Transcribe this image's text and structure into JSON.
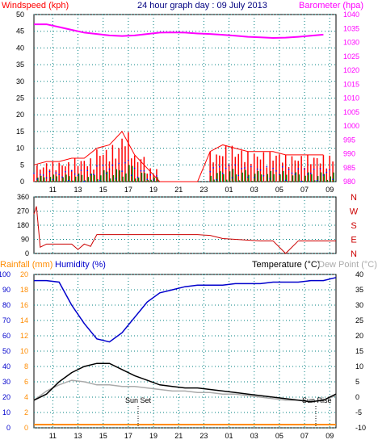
{
  "chart_data": [
    {
      "type": "line",
      "title": "24 hour graph day : 09 July 2013",
      "ylabel_left": "Windspeed (kph)",
      "ylabel_right": "Barometer (hpa)",
      "x_ticks": [
        "11",
        "13",
        "15",
        "17",
        "19",
        "21",
        "23",
        "01",
        "03",
        "05",
        "07",
        "09"
      ],
      "y_left_ticks": [
        "0",
        "5",
        "10",
        "15",
        "20",
        "25",
        "30",
        "35",
        "40",
        "45",
        "50"
      ],
      "y_right_ticks": [
        "980",
        "985",
        "990",
        "995",
        "1000",
        "1005",
        "1010",
        "1015",
        "1020",
        "1025",
        "1030",
        "1035",
        "1040"
      ],
      "ylim_left": [
        0,
        50
      ],
      "ylim_right": [
        980,
        1040
      ],
      "grid": true,
      "series": [
        {
          "name": "Windspeed (kph)",
          "color": "#ff0000",
          "hours": [
            0,
            1,
            2,
            3,
            4,
            5,
            6,
            7,
            8,
            9,
            10,
            11,
            12,
            13,
            14,
            15,
            16,
            17,
            18,
            19,
            20,
            21,
            22,
            23
          ],
          "values": [
            5,
            6,
            6,
            7,
            7,
            10,
            11,
            15,
            8,
            4,
            0,
            0,
            0,
            0,
            9,
            11,
            10,
            9,
            9,
            9,
            8,
            8,
            8,
            8
          ]
        },
        {
          "name": "Barometer (hpa)",
          "color": "#ff00ff",
          "hours": [
            0,
            1,
            2,
            3,
            4,
            5,
            6,
            7,
            8,
            9,
            10,
            11,
            12,
            13,
            14,
            15,
            16,
            17,
            18,
            19,
            20,
            21,
            22,
            23
          ],
          "values": [
            1036.5,
            1036.5,
            1035.5,
            1034.5,
            1033.5,
            1033,
            1032.5,
            1032.3,
            1032.5,
            1033,
            1033.5,
            1033.6,
            1033.5,
            1033.2,
            1033,
            1032.7,
            1032.4,
            1032,
            1031.8,
            1031.6,
            1031.7,
            1032,
            1032.4,
            1032.8
          ]
        }
      ]
    },
    {
      "type": "line",
      "ylabel_right_letters": [
        "N",
        "W",
        "S",
        "E",
        "N"
      ],
      "y_left_ticks": [
        "360",
        "270",
        "180",
        "90",
        "0"
      ],
      "ylim": [
        0,
        360
      ],
      "grid": true,
      "series": [
        {
          "name": "Wind direction",
          "color": "#cc0000",
          "hours": [
            0,
            0.2,
            0.5,
            1,
            2,
            2.5,
            3,
            3.5,
            4,
            4.5,
            5,
            6,
            7,
            8,
            9,
            10,
            11,
            12,
            13,
            14,
            15,
            16,
            17,
            18,
            19,
            20,
            21,
            22,
            23,
            24
          ],
          "values": [
            250,
            300,
            40,
            60,
            60,
            60,
            60,
            25,
            60,
            45,
            120,
            120,
            120,
            120,
            120,
            120,
            120,
            120,
            120,
            115,
            95,
            90,
            85,
            80,
            80,
            0,
            80,
            80,
            80,
            80
          ]
        }
      ]
    },
    {
      "type": "line",
      "ylabel_left_rain": "Rainfall (mm)",
      "ylabel_left_hum": "Humidity (%)",
      "ylabel_right_temp": "Temperature (°C)",
      "ylabel_right_dew": "Dew Point (°C)",
      "annotations": [
        "Sun Set",
        "Sun Rise"
      ],
      "y_hum_ticks": [
        "0",
        "10",
        "20",
        "30",
        "40",
        "50",
        "60",
        "70",
        "80",
        "90",
        "100"
      ],
      "y_rain_ticks": [
        "0",
        "2",
        "4",
        "6",
        "8",
        "10",
        "12",
        "14",
        "16",
        "18",
        "20"
      ],
      "y_temp_ticks": [
        "-10",
        "-5",
        "0",
        "5",
        "10",
        "15",
        "20",
        "25",
        "30",
        "35",
        "40"
      ],
      "ylim_hum": [
        0,
        100
      ],
      "ylim_temp": [
        -10,
        40
      ],
      "grid": true,
      "series": [
        {
          "name": "Humidity (%)",
          "color": "#0000cc",
          "hours": [
            0,
            1,
            2,
            3,
            4,
            5,
            6,
            7,
            8,
            9,
            10,
            11,
            12,
            13,
            14,
            15,
            16,
            17,
            18,
            19,
            20,
            21,
            22,
            23,
            24
          ],
          "values": [
            96,
            96,
            95,
            80,
            68,
            58,
            56,
            62,
            72,
            82,
            88,
            90,
            92,
            93,
            93,
            93,
            94,
            94,
            94,
            95,
            95,
            95,
            96,
            96,
            98
          ]
        },
        {
          "name": "Temperature (°C)",
          "color": "#000000",
          "hours": [
            0,
            1,
            2,
            3,
            4,
            5,
            6,
            7,
            8,
            9,
            10,
            11,
            12,
            13,
            14,
            15,
            16,
            17,
            18,
            19,
            20,
            21,
            22,
            23,
            24
          ],
          "values": [
            -1,
            1,
            5,
            8,
            10,
            11,
            11,
            9,
            7,
            5.5,
            4,
            3.5,
            3,
            3,
            2.5,
            2,
            1.5,
            1,
            0.5,
            0,
            -0.5,
            -1,
            -1.5,
            -1,
            1
          ]
        },
        {
          "name": "Dew Point (°C)",
          "color": "#aaaaaa",
          "hours": [
            0,
            1,
            2,
            3,
            4,
            5,
            6,
            7,
            8,
            9,
            10,
            11,
            12,
            13,
            14,
            15,
            16,
            17,
            18,
            19,
            20,
            21,
            22,
            23,
            24
          ],
          "values": [
            -1,
            2,
            4,
            5.5,
            5,
            4,
            4,
            3.5,
            3.5,
            3,
            2.5,
            2,
            2,
            1.5,
            1.5,
            1,
            1,
            0.5,
            0,
            -0.5,
            -1,
            -1,
            -1.5,
            -1,
            0.5
          ]
        },
        {
          "name": "Rainfall (mm)",
          "color": "#ff8c00",
          "hours": [
            0,
            24
          ],
          "values": [
            0,
            0
          ]
        }
      ]
    }
  ],
  "colors": {
    "grid": "#008080",
    "frame": "#000000",
    "wind_label": "#ff0000",
    "baro_label": "#ff00ff",
    "title": "#000080",
    "dir_letters": "#cc0000",
    "rain_label": "#ff8c00",
    "hum_label": "#0000cc",
    "dew_label": "#aaaaaa",
    "gust_green": "#008000",
    "gust_blue": "#0000ff"
  }
}
